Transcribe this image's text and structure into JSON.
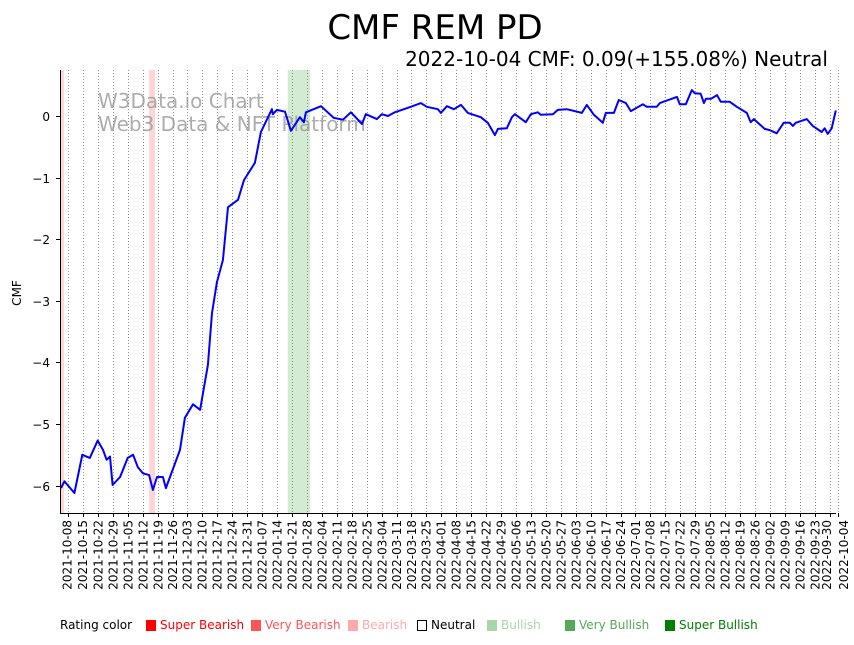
{
  "chart_data": {
    "type": "line",
    "title": "CMF REM PD",
    "subtitle": "2022-10-04 CMF: 0.09(+155.08%) Neutral",
    "ylabel": "CMF",
    "xlabel": "",
    "x_origin_date": "2021-10-08",
    "x_unit": "days since x_origin_date",
    "xlim": [
      -3.75,
      360
    ],
    "ylim": [
      -6.445,
      0.747
    ],
    "yticks": [
      0,
      -1,
      -2,
      -3,
      -4,
      -5,
      -6
    ],
    "ytick_labels": [
      "0",
      "−1",
      "−2",
      "−3",
      "−4",
      "−5",
      "−6"
    ],
    "xtick_labels": [
      "2021-10-08",
      "2021-10-15",
      "2021-10-22",
      "2021-10-29",
      "2021-11-05",
      "2021-11-12",
      "2021-11-19",
      "2021-11-26",
      "2021-12-03",
      "2021-12-10",
      "2021-12-17",
      "2021-12-24",
      "2021-12-31",
      "2022-01-07",
      "2022-01-14",
      "2022-01-21",
      "2022-01-28",
      "2022-02-04",
      "2022-02-11",
      "2022-02-18",
      "2022-02-25",
      "2022-03-04",
      "2022-03-11",
      "2022-03-18",
      "2022-03-25",
      "2022-04-01",
      "2022-04-08",
      "2022-04-15",
      "2022-04-22",
      "2022-04-29",
      "2022-05-06",
      "2022-05-13",
      "2022-05-20",
      "2022-05-27",
      "2022-06-03",
      "2022-06-10",
      "2022-06-17",
      "2022-06-24",
      "2022-07-01",
      "2022-07-08",
      "2022-07-15",
      "2022-07-22",
      "2022-07-29",
      "2022-08-05",
      "2022-08-12",
      "2022-08-19",
      "2022-08-26",
      "2022-09-02",
      "2022-09-09",
      "2022-09-16",
      "2022-09-23",
      "2022-09-30",
      "2022-10-04"
    ],
    "grid": "vertical dotted",
    "series": [
      {
        "name": "CMF",
        "color": "#0000ff",
        "points": [
          [
            -3.3,
            -6.04
          ],
          [
            -1.7,
            -5.93
          ],
          [
            3,
            -6.12
          ],
          [
            6.7,
            -5.5
          ],
          [
            10.2,
            -5.55
          ],
          [
            13.9,
            -5.27
          ],
          [
            16.4,
            -5.42
          ],
          [
            18.1,
            -5.58
          ],
          [
            19.7,
            -5.53
          ],
          [
            20.9,
            -5.99
          ],
          [
            24.4,
            -5.86
          ],
          [
            28,
            -5.55
          ],
          [
            30.5,
            -5.5
          ],
          [
            32.7,
            -5.7
          ],
          [
            35.1,
            -5.8
          ],
          [
            38,
            -5.83
          ],
          [
            39.8,
            -6.07
          ],
          [
            41.7,
            -5.86
          ],
          [
            44.5,
            -5.86
          ],
          [
            45.9,
            -6.04
          ],
          [
            52.5,
            -5.42
          ],
          [
            54.8,
            -4.9
          ],
          [
            58.6,
            -4.68
          ],
          [
            61.9,
            -4.77
          ],
          [
            65.6,
            -4.04
          ],
          [
            67.5,
            -3.2
          ],
          [
            69.8,
            -2.7
          ],
          [
            72.6,
            -2.34
          ],
          [
            75,
            -1.48
          ],
          [
            79.7,
            -1.36
          ],
          [
            82.5,
            -1.04
          ],
          [
            87.6,
            -0.76
          ],
          [
            90.4,
            -0.26
          ],
          [
            95.6,
            0.11
          ],
          [
            96,
            0.03
          ],
          [
            97.9,
            0.1
          ],
          [
            101.7,
            0.07
          ],
          [
            104.5,
            -0.24
          ],
          [
            108.7,
            -0.02
          ],
          [
            110.6,
            -0.1
          ],
          [
            111.5,
            0.06
          ],
          [
            118.6,
            0.16
          ],
          [
            121.4,
            0.07
          ],
          [
            124.6,
            -0.03
          ],
          [
            128.9,
            -0.06
          ],
          [
            132.6,
            0.06
          ],
          [
            137.8,
            -0.13
          ],
          [
            139.6,
            0.03
          ],
          [
            144.8,
            -0.05
          ],
          [
            147.1,
            0.03
          ],
          [
            150,
            0
          ],
          [
            153.2,
            0.06
          ],
          [
            160.7,
            0.15
          ],
          [
            165.4,
            0.21
          ],
          [
            168.2,
            0.15
          ],
          [
            173.4,
            0.11
          ],
          [
            174.8,
            0.05
          ],
          [
            177.6,
            0.16
          ],
          [
            180.9,
            0.11
          ],
          [
            184.2,
            0.18
          ],
          [
            187.4,
            0.05
          ],
          [
            193.5,
            -0.02
          ],
          [
            196.8,
            -0.11
          ],
          [
            200.1,
            -0.31
          ],
          [
            201.5,
            -0.21
          ],
          [
            205.7,
            -0.2
          ],
          [
            208.1,
            -0.02
          ],
          [
            209.5,
            0.03
          ],
          [
            214.6,
            -0.1
          ],
          [
            217,
            0.03
          ],
          [
            220.2,
            0.06
          ],
          [
            221.6,
            0.02
          ],
          [
            227.3,
            0.03
          ],
          [
            229.6,
            0.1
          ],
          [
            233.8,
            0.11
          ],
          [
            240.9,
            0.05
          ],
          [
            243.2,
            0.18
          ],
          [
            246.5,
            0.02
          ],
          [
            250.7,
            -0.11
          ],
          [
            252.1,
            0.05
          ],
          [
            255.9,
            0.05
          ],
          [
            258.2,
            0.26
          ],
          [
            261.5,
            0.21
          ],
          [
            263.8,
            0.08
          ],
          [
            269.5,
            0.19
          ],
          [
            271.3,
            0.15
          ],
          [
            276,
            0.15
          ],
          [
            277.4,
            0.21
          ],
          [
            285.4,
            0.31
          ],
          [
            286.8,
            0.19
          ],
          [
            289.6,
            0.19
          ],
          [
            292.4,
            0.42
          ],
          [
            293.8,
            0.37
          ],
          [
            296.6,
            0.36
          ],
          [
            298.1,
            0.21
          ],
          [
            299,
            0.28
          ],
          [
            301.4,
            0.28
          ],
          [
            304.2,
            0.34
          ],
          [
            306,
            0.23
          ],
          [
            310.2,
            0.23
          ],
          [
            313.5,
            0.15
          ],
          [
            318.2,
            0.05
          ],
          [
            320,
            -0.1
          ],
          [
            321.5,
            -0.05
          ],
          [
            326.6,
            -0.21
          ],
          [
            329,
            -0.23
          ],
          [
            332.2,
            -0.28
          ],
          [
            335.5,
            -0.11
          ],
          [
            338.4,
            -0.11
          ],
          [
            339.8,
            -0.16
          ],
          [
            341.1,
            -0.11
          ],
          [
            346.3,
            -0.05
          ],
          [
            349.1,
            -0.16
          ],
          [
            353.3,
            -0.26
          ],
          [
            354.7,
            -0.2
          ],
          [
            356.1,
            -0.29
          ],
          [
            358,
            -0.2
          ],
          [
            359.9,
            0.09
          ]
        ]
      }
    ],
    "bands": [
      {
        "rating": "Very Bearish",
        "from": -3.75,
        "to": -1.9,
        "color": "#ffd6d6"
      },
      {
        "rating": "Very Bearish",
        "from": 38,
        "to": 40.8,
        "color": "#ffd6d6"
      },
      {
        "rating": "Very Bullish",
        "from": 103,
        "to": 113.4,
        "color": "#d3ead3"
      }
    ],
    "watermark": [
      "W3Data.io Chart",
      "Web3 Data & NFT Platform"
    ],
    "legend": {
      "title": "Rating color",
      "placement": "bottom-left",
      "items": [
        {
          "label": "Super Bearish",
          "color": "#ff0000",
          "filled": true
        },
        {
          "label": "Very Bearish",
          "color": "#ff5555",
          "filled": true
        },
        {
          "label": "Bearish",
          "color": "#ffaaaa",
          "filled": true
        },
        {
          "label": "Neutral",
          "color": "#000000",
          "filled": false
        },
        {
          "label": "Bullish",
          "color": "#a9d6a9",
          "filled": true
        },
        {
          "label": "Very Bullish",
          "color": "#55aa55",
          "filled": true
        },
        {
          "label": "Super Bullish",
          "color": "#008000",
          "filled": true
        }
      ]
    }
  }
}
